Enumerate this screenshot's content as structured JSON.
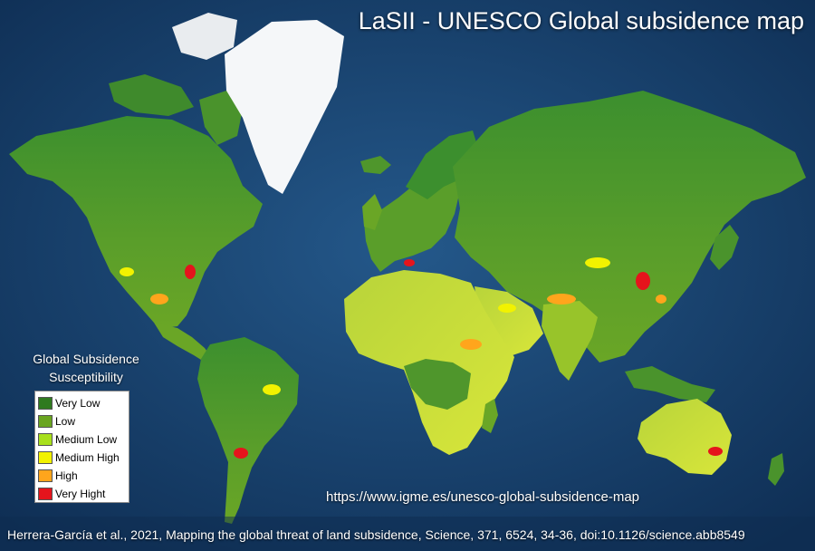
{
  "map": {
    "title": "LaSII - UNESCO Global subsidence map",
    "url": "https://www.igme.es/unesco-global-subsidence-map",
    "citation": "Herrera-García et al., 2021, Mapping the global threat of land subsidence, Science, 371, 6524, 34-36, doi:10.1126/science.abb8549",
    "projection": "mercator",
    "base_layer": "satellite-imagery",
    "colors": {
      "ocean": "#1c4a78",
      "ice": "#f4f6f8",
      "land_base": "#3f8a2c"
    }
  },
  "legend": {
    "title_line1": "Global Subsidence",
    "title_line2": "Susceptibility",
    "items": [
      {
        "label": "Very Low",
        "color": "#2f7a1f"
      },
      {
        "label": "Low",
        "color": "#6aa520"
      },
      {
        "label": "Medium Low",
        "color": "#a8e01c"
      },
      {
        "label": "Medium High",
        "color": "#f2f200"
      },
      {
        "label": "High",
        "color": "#ffa51c"
      },
      {
        "label": "Very Hight",
        "color": "#e5141c"
      }
    ]
  }
}
